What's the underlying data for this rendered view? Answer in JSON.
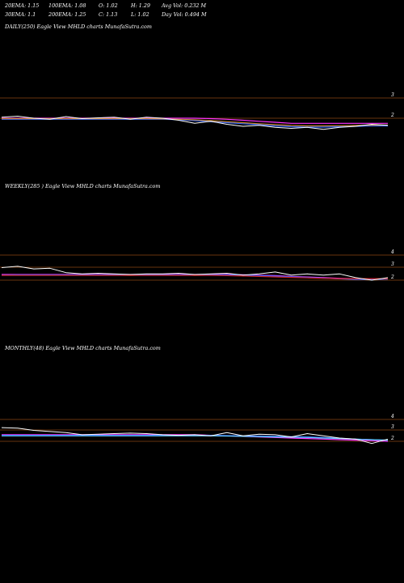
{
  "header": {
    "row1": [
      {
        "text": "20EMA: 1.15"
      },
      {
        "text": "100EMA: 1.08"
      },
      {
        "text": "O: 1.02"
      },
      {
        "text": "H: 1.29"
      },
      {
        "text": "Avg Vol: 0.232  M"
      }
    ],
    "row2": [
      {
        "text": "30EMA: 1.1"
      },
      {
        "text": "200EMA: 1.25"
      },
      {
        "text": "C: 1.13"
      },
      {
        "text": "L: 1.02"
      },
      {
        "text": "Day Vol: 0.494  M"
      }
    ]
  },
  "colors": {
    "background": "#000000",
    "gridline": "#8b4513",
    "price": "#ffffff",
    "ema_magenta": "#ff33ff",
    "ema_pink": "#ff99cc",
    "ema_blue": "#3366ff",
    "ema_cyan": "#66ccff",
    "ema_red": "#cc2222",
    "ema_orange": "#cc8833"
  },
  "chart_data": [
    {
      "type": "line",
      "label": "DAILY(250) Eagle   View  MHLD charts MunafaSutra.com",
      "y_ticks": [
        "3",
        "2"
      ],
      "x": [
        0,
        1,
        2,
        3,
        4,
        5,
        6,
        7,
        8,
        9,
        10,
        11,
        12,
        13,
        14,
        15,
        16,
        17,
        18,
        19,
        20,
        21,
        22,
        23,
        24
      ],
      "series": [
        {
          "role": "price",
          "values": [
            2.05,
            2.1,
            2.0,
            1.95,
            2.08,
            1.98,
            2.02,
            2.05,
            1.95,
            2.05,
            2.0,
            1.9,
            1.75,
            1.85,
            1.7,
            1.6,
            1.65,
            1.55,
            1.5,
            1.55,
            1.45,
            1.55,
            1.6,
            1.7,
            1.65
          ]
        },
        {
          "role": "ema_magenta",
          "values": [
            2.0,
            2.0,
            2.0,
            2.0,
            2.0,
            2.0,
            2.0,
            2.0,
            2.0,
            2.0,
            2.0,
            2.0,
            2.0,
            1.98,
            1.95,
            1.9,
            1.85,
            1.8,
            1.75,
            1.75,
            1.75,
            1.75,
            1.75,
            1.75,
            1.75
          ]
        },
        {
          "role": "ema_blue",
          "values": [
            1.95,
            1.95,
            1.95,
            1.95,
            1.95,
            1.95,
            1.95,
            1.95,
            1.95,
            1.95,
            1.95,
            1.93,
            1.88,
            1.83,
            1.78,
            1.73,
            1.68,
            1.62,
            1.58,
            1.56,
            1.56,
            1.58,
            1.6,
            1.62,
            1.62
          ]
        },
        {
          "role": "ema_orange",
          "values": [
            1.98,
            1.98,
            1.98,
            1.98,
            1.98,
            1.98,
            1.98,
            1.98,
            1.98,
            1.98,
            1.97,
            1.95,
            1.92,
            1.88,
            1.83,
            1.78,
            1.73,
            1.68,
            1.64,
            1.62,
            1.62,
            1.63,
            1.64,
            1.66,
            1.66
          ]
        }
      ]
    },
    {
      "type": "line",
      "label": "WEEKLY(285                           ) Eagle   View  MHLD charts MunafaSutra.com",
      "y_ticks": [
        "4",
        "3",
        "2"
      ],
      "x": [
        0,
        1,
        2,
        3,
        4,
        5,
        6,
        7,
        8,
        9,
        10,
        11,
        12,
        13,
        14,
        15,
        16,
        17,
        18,
        19,
        20,
        21,
        22,
        23,
        24
      ],
      "series": [
        {
          "role": "price",
          "values": [
            3.0,
            3.1,
            2.9,
            2.95,
            2.6,
            2.5,
            2.55,
            2.5,
            2.45,
            2.5,
            2.5,
            2.55,
            2.45,
            2.5,
            2.55,
            2.4,
            2.5,
            2.65,
            2.4,
            2.5,
            2.4,
            2.5,
            2.2,
            2.0,
            2.2
          ]
        },
        {
          "role": "ema_magenta",
          "values": [
            2.45,
            2.45,
            2.45,
            2.45,
            2.45,
            2.45,
            2.45,
            2.45,
            2.45,
            2.45,
            2.45,
            2.45,
            2.45,
            2.45,
            2.45,
            2.43,
            2.4,
            2.36,
            2.3,
            2.25,
            2.2,
            2.15,
            2.12,
            2.1,
            2.1
          ]
        },
        {
          "role": "ema_blue",
          "values": [
            2.4,
            2.42,
            2.42,
            2.42,
            2.42,
            2.42,
            2.42,
            2.42,
            2.42,
            2.42,
            2.42,
            2.42,
            2.42,
            2.42,
            2.42,
            2.4,
            2.37,
            2.32,
            2.27,
            2.22,
            2.16,
            2.1,
            2.05,
            2.05,
            2.08
          ]
        },
        {
          "role": "ema_red",
          "values": [
            2.38,
            2.38,
            2.38,
            2.38,
            2.38,
            2.38,
            2.38,
            2.38,
            2.38,
            2.38,
            2.38,
            2.38,
            2.38,
            2.38,
            2.36,
            2.33,
            2.3,
            2.26,
            2.22,
            2.18,
            2.14,
            2.12,
            2.12,
            2.12,
            2.12
          ]
        }
      ]
    },
    {
      "type": "line",
      "label": "MONTHLY(48) Eagle   View  MHLD charts MunafaSutra.com",
      "y_ticks": [
        "4",
        "3",
        "2"
      ],
      "x": [
        0,
        1,
        2,
        3,
        4,
        5,
        6,
        7,
        8,
        9,
        10,
        11,
        12,
        13,
        14,
        15,
        16,
        17,
        18,
        19,
        20,
        21,
        22,
        23,
        24
      ],
      "series": [
        {
          "role": "price",
          "values": [
            3.25,
            3.2,
            3.0,
            2.9,
            2.8,
            2.6,
            2.65,
            2.7,
            2.75,
            2.7,
            2.6,
            2.55,
            2.6,
            2.5,
            2.8,
            2.5,
            2.65,
            2.6,
            2.4,
            2.7,
            2.5,
            2.3,
            2.2,
            1.8,
            2.2
          ]
        },
        {
          "role": "ema_magenta",
          "values": [
            2.6,
            2.6,
            2.6,
            2.6,
            2.6,
            2.6,
            2.6,
            2.6,
            2.6,
            2.6,
            2.6,
            2.6,
            2.6,
            2.55,
            2.5,
            2.45,
            2.4,
            2.35,
            2.3,
            2.25,
            2.2,
            2.15,
            2.1,
            2.05,
            2.0
          ]
        },
        {
          "role": "ema_blue",
          "values": [
            2.55,
            2.55,
            2.55,
            2.55,
            2.55,
            2.55,
            2.55,
            2.55,
            2.55,
            2.55,
            2.55,
            2.55,
            2.55,
            2.55,
            2.52,
            2.5,
            2.48,
            2.45,
            2.43,
            2.4,
            2.35,
            2.28,
            2.2,
            2.15,
            2.1
          ]
        },
        {
          "role": "ema_cyan",
          "values": [
            2.5,
            2.5,
            2.5,
            2.5,
            2.5,
            2.5,
            2.5,
            2.5,
            2.5,
            2.5,
            2.5,
            2.5,
            2.5,
            2.5,
            2.48,
            2.45,
            2.42,
            2.4,
            2.38,
            2.35,
            2.3,
            2.25,
            2.2,
            2.15,
            2.1
          ]
        }
      ]
    }
  ]
}
